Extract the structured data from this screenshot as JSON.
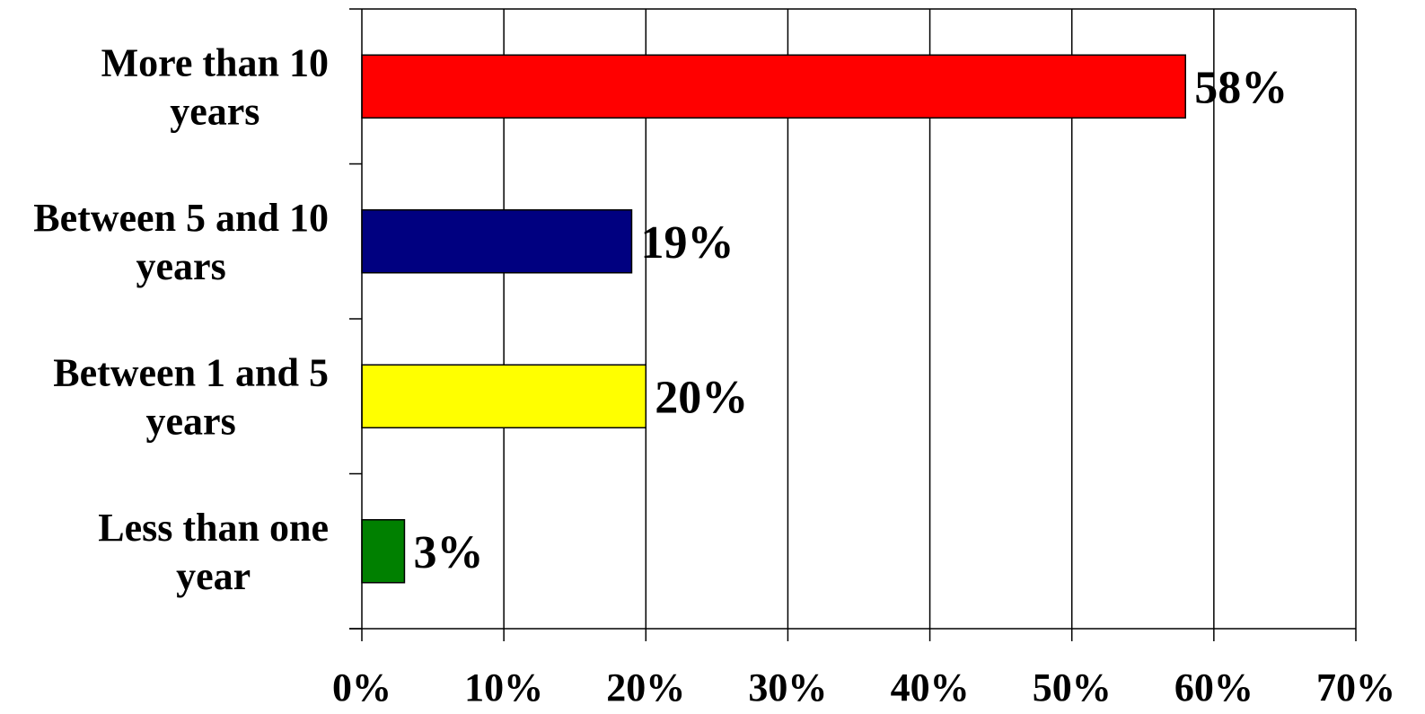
{
  "chart_data": {
    "type": "bar",
    "orientation": "horizontal",
    "categories": [
      [
        "More than 10",
        "years"
      ],
      [
        "Between 5 and 10",
        "years"
      ],
      [
        "Between 1 and 5",
        "years"
      ],
      [
        "Less than one",
        "year"
      ]
    ],
    "values": [
      58,
      19,
      20,
      3
    ],
    "data_labels": [
      "58%",
      "19%",
      "20%",
      "3%"
    ],
    "bar_colors": [
      "#ff0000",
      "#000080",
      "#ffff00",
      "#008000"
    ],
    "xlim": [
      0,
      70
    ],
    "x_ticks": [
      0,
      10,
      20,
      30,
      40,
      50,
      60,
      70
    ],
    "x_tick_labels": [
      "0%",
      "10%",
      "20%",
      "30%",
      "40%",
      "50%",
      "60%",
      "70%"
    ],
    "grid": true,
    "legend": "none"
  }
}
